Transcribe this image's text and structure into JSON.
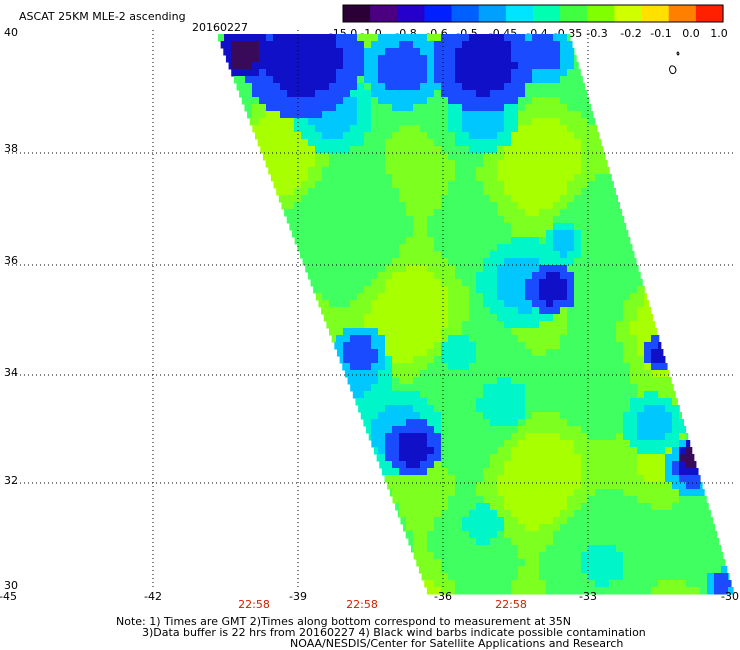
{
  "header": {
    "title": "ASCAT 25KM MLE-2 ascending",
    "date": "20160227"
  },
  "colorbar": {
    "ticks": [
      "-15.0",
      "-1.0",
      "-0.8",
      "-0.6",
      "-0.5",
      "-0.45",
      "-0.4",
      "-0.35",
      "-0.3",
      "-0.2",
      "-0.1",
      "0.0",
      "1.0"
    ],
    "colors": [
      "#2b0036",
      "#4b0082",
      "#2500cc",
      "#0020ff",
      "#0060ff",
      "#00a0ff",
      "#00e5ff",
      "#00ffb0",
      "#40ff40",
      "#80ff00",
      "#d0ff00",
      "#ffe000",
      "#ff8000",
      "#ff2000"
    ]
  },
  "map": {
    "lat_labels": [
      "40",
      "38",
      "36",
      "34",
      "32",
      "30"
    ],
    "lon_labels": [
      "-45",
      "-42",
      "-39",
      "-36",
      "-33",
      "-30"
    ],
    "time_labels": [
      "22:58",
      "22:58",
      "22:58"
    ]
  },
  "notes": {
    "line1": "Note: 1) Times are GMT 2)Times along bottom correspond to measurement at 35N",
    "line2": "3)Data buffer is 22 hrs from 20160227 4) Black wind barbs indicate possible contamination",
    "line3": "NOAA/NESDIS/Center for Satellite Applications and Research"
  }
}
